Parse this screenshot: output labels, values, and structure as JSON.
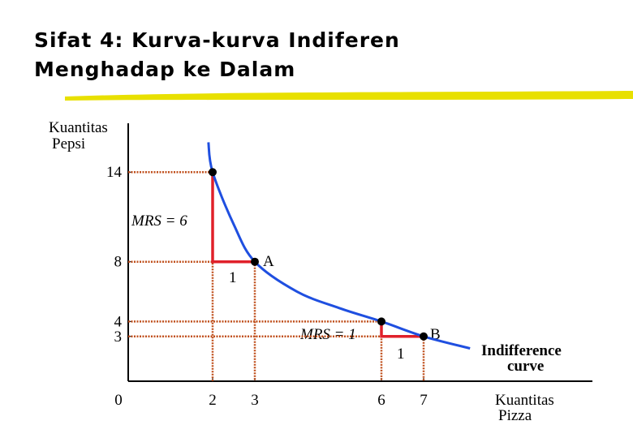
{
  "chart_data": {
    "type": "line",
    "title_lines": [
      "Sifat 4: Kurva-kurva Indiferen",
      "Menghadap ke Dalam"
    ],
    "y_label_lines": [
      "Kuantitas",
      "Pepsi"
    ],
    "x_label_lines": [
      "Kuantitas",
      "Pizza"
    ],
    "xlim": [
      0,
      11
    ],
    "ylim": [
      0,
      17
    ],
    "xticks": [
      0,
      2,
      3,
      6,
      7
    ],
    "yticks": [
      3,
      4,
      8,
      14
    ],
    "series": [
      {
        "name": "Indifference curve",
        "color": "#1f4fe0",
        "x": [
          1.9,
          2,
          2.5,
          3,
          4,
          5,
          6,
          7,
          8.1
        ],
        "values": [
          16,
          14,
          10.5,
          8,
          6,
          4.9,
          4,
          3,
          2.2
        ]
      }
    ],
    "points": {
      "x": [
        2,
        3,
        6,
        7
      ],
      "values": [
        14,
        8,
        4,
        3
      ]
    },
    "annotations": {
      "mrs_6": "MRS = 6",
      "one_a": "1",
      "label_a": "A",
      "mrs_1": "MRS = 1",
      "one_b": "1",
      "label_b": "B",
      "curve_lines": [
        "Indifference",
        "curve"
      ]
    }
  }
}
